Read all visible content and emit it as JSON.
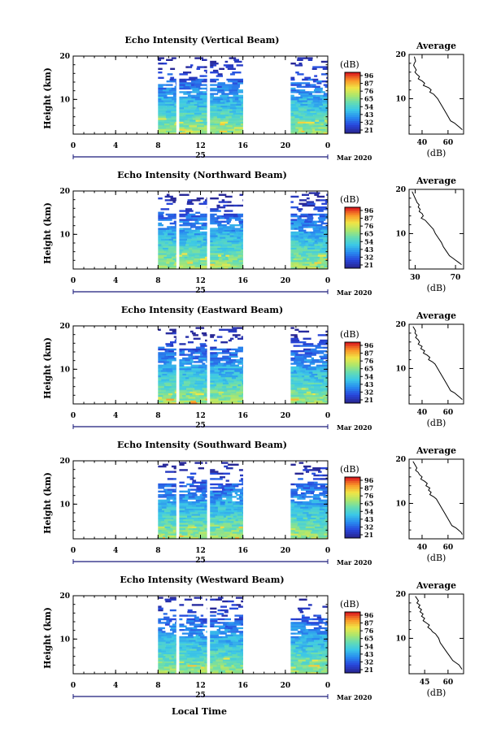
{
  "figure": {
    "xlabel": "Local Time",
    "date_label": "Mar 2020",
    "day_label": "25",
    "colorbar_unit": "(dB)",
    "average_title": "Average",
    "average_xlabel": "(dB)"
  },
  "chart_data": [
    {
      "type": "heatmap",
      "title": "Echo Intensity (Vertical Beam)",
      "ylabel": "Height (km)",
      "x_ticks": [
        "0",
        "4",
        "8",
        "12",
        "16",
        "20",
        "0"
      ],
      "y_ticks": [
        "20",
        "10"
      ],
      "xlim": [
        0,
        24
      ],
      "ylim": [
        2,
        20
      ],
      "data_intervals_hours": [
        [
          8,
          9.7
        ],
        [
          10,
          12.6
        ],
        [
          12.9,
          16
        ],
        [
          20.5,
          24
        ]
      ],
      "colorbar_ticks": [
        "96",
        "87",
        "76",
        "65",
        "54",
        "43",
        "32",
        "21"
      ],
      "average_profile": {
        "x_ticks": [
          "40",
          "60"
        ],
        "y_ticks": [
          "20",
          "10"
        ],
        "xlim": [
          30,
          72
        ],
        "ylim": [
          2,
          20
        ],
        "x": [
          34,
          34.5,
          35,
          34,
          33.5,
          34.5,
          35.5,
          34.5,
          36,
          38,
          37,
          40,
          42,
          41,
          45,
          47,
          46,
          49,
          52,
          54,
          56,
          58,
          60,
          62,
          65,
          67,
          69,
          71
        ],
        "y": [
          19.5,
          19,
          18.5,
          18,
          17.5,
          17,
          16.5,
          16,
          15.5,
          15,
          14.5,
          14,
          13.5,
          13,
          12.5,
          12,
          11.5,
          11,
          10,
          9,
          8,
          7,
          6,
          5,
          4.5,
          4,
          3.5,
          3
        ]
      }
    },
    {
      "type": "heatmap",
      "title": "Echo Intensity (Northward Beam)",
      "ylabel": "Height (km)",
      "x_ticks": [
        "0",
        "4",
        "8",
        "12",
        "16",
        "20",
        "0"
      ],
      "y_ticks": [
        "20",
        "10"
      ],
      "xlim": [
        0,
        24
      ],
      "ylim": [
        2,
        20
      ],
      "data_intervals_hours": [
        [
          8,
          9.7
        ],
        [
          10,
          12.6
        ],
        [
          12.9,
          16
        ],
        [
          20.5,
          24
        ]
      ],
      "colorbar_ticks": [
        "96",
        "87",
        "76",
        "65",
        "54",
        "43",
        "32",
        "21"
      ],
      "average_profile": {
        "x_ticks": [
          "30",
          "70"
        ],
        "y_ticks": [
          "20",
          "10"
        ],
        "xlim": [
          24,
          78
        ],
        "ylim": [
          2,
          20
        ],
        "x": [
          27,
          28,
          29,
          30,
          31,
          32,
          34,
          33,
          35,
          34,
          37,
          38,
          36,
          40,
          42,
          44,
          46,
          48,
          50,
          53,
          56,
          58,
          61,
          64,
          67,
          70,
          73,
          76
        ],
        "y": [
          19.5,
          19,
          18.5,
          18,
          17.5,
          17,
          16.5,
          16,
          15.5,
          15,
          14.5,
          14,
          13.5,
          13,
          12.5,
          12,
          11.5,
          11,
          10,
          9,
          8,
          7,
          6,
          5,
          4.5,
          4,
          3.5,
          3
        ]
      }
    },
    {
      "type": "heatmap",
      "title": "Echo Intensity (Eastward Beam)",
      "ylabel": "Height (km)",
      "x_ticks": [
        "0",
        "4",
        "8",
        "12",
        "16",
        "20",
        "0"
      ],
      "y_ticks": [
        "20",
        "10"
      ],
      "xlim": [
        0,
        24
      ],
      "ylim": [
        2,
        20
      ],
      "data_intervals_hours": [
        [
          8,
          9.7
        ],
        [
          10,
          12.6
        ],
        [
          12.9,
          16
        ],
        [
          20.5,
          24
        ]
      ],
      "colorbar_ticks": [
        "96",
        "87",
        "76",
        "65",
        "54",
        "43",
        "32",
        "21"
      ],
      "average_profile": {
        "x_ticks": [
          "40",
          "60"
        ],
        "y_ticks": [
          "20",
          "10"
        ],
        "xlim": [
          30,
          72
        ],
        "ylim": [
          2,
          20
        ],
        "x": [
          33,
          34,
          35,
          34.5,
          36,
          35,
          37,
          38,
          37,
          40,
          39,
          42,
          41,
          44,
          46,
          45,
          48,
          50,
          52,
          54,
          56,
          58,
          60,
          62,
          65,
          67,
          69,
          71
        ],
        "y": [
          19.5,
          19,
          18.5,
          18,
          17.5,
          17,
          16.5,
          16,
          15.5,
          15,
          14.5,
          14,
          13.5,
          13,
          12.5,
          12,
          11.5,
          11,
          10,
          9,
          8,
          7,
          6,
          5,
          4.5,
          4,
          3.5,
          3
        ]
      }
    },
    {
      "type": "heatmap",
      "title": "Echo Intensity (Southward Beam)",
      "ylabel": "Height (km)",
      "x_ticks": [
        "0",
        "4",
        "8",
        "12",
        "16",
        "20",
        "0"
      ],
      "y_ticks": [
        "20",
        "10"
      ],
      "xlim": [
        0,
        24
      ],
      "ylim": [
        2,
        20
      ],
      "data_intervals_hours": [
        [
          8,
          9.7
        ],
        [
          10,
          12.6
        ],
        [
          12.9,
          16
        ],
        [
          20.5,
          24
        ]
      ],
      "colorbar_ticks": [
        "96",
        "87",
        "76",
        "65",
        "54",
        "43",
        "32",
        "21"
      ],
      "average_profile": {
        "x_ticks": [
          "40",
          "60"
        ],
        "y_ticks": [
          "20",
          "10"
        ],
        "xlim": [
          30,
          72
        ],
        "ylim": [
          2,
          20
        ],
        "x": [
          33,
          34,
          35,
          36,
          35,
          37,
          38,
          40,
          39,
          42,
          44,
          43,
          46,
          45,
          47,
          46,
          49,
          51,
          53,
          55,
          57,
          59,
          61,
          63,
          66,
          68,
          70,
          71
        ],
        "y": [
          19.5,
          19,
          18.5,
          18,
          17.5,
          17,
          16.5,
          16,
          15.5,
          15,
          14.5,
          14,
          13.5,
          13,
          12.5,
          12,
          11.5,
          11,
          10,
          9,
          8,
          7,
          6,
          5,
          4.5,
          4,
          3.5,
          3
        ]
      }
    },
    {
      "type": "heatmap",
      "title": "Echo Intensity (Westward Beam)",
      "ylabel": "Height (km)",
      "x_ticks": [
        "0",
        "4",
        "8",
        "12",
        "16",
        "20",
        "0"
      ],
      "y_ticks": [
        "20",
        "10"
      ],
      "xlim": [
        0,
        24
      ],
      "ylim": [
        2,
        20
      ],
      "data_intervals_hours": [
        [
          8,
          9.7
        ],
        [
          10,
          12.6
        ],
        [
          12.9,
          16
        ],
        [
          20.5,
          24
        ]
      ],
      "colorbar_ticks": [
        "96",
        "87",
        "76",
        "65",
        "54",
        "43",
        "32",
        "21"
      ],
      "average_profile": {
        "x_ticks": [
          "45",
          "60"
        ],
        "y_ticks": [
          "20",
          "10"
        ],
        "xlim": [
          35,
          70
        ],
        "ylim": [
          2,
          20
        ],
        "x": [
          39,
          40,
          41,
          40,
          42,
          41,
          43,
          42,
          44,
          43,
          45,
          44,
          46,
          48,
          47,
          49,
          50,
          52,
          54,
          55,
          57,
          59,
          61,
          63,
          65,
          67,
          68,
          69
        ],
        "y": [
          19.5,
          19,
          18.5,
          18,
          17.5,
          17,
          16.5,
          16,
          15.5,
          15,
          14.5,
          14,
          13.5,
          13,
          12.5,
          12,
          11.5,
          11,
          10,
          9,
          8,
          7,
          6,
          5,
          4.5,
          4,
          3.5,
          3
        ]
      }
    }
  ]
}
